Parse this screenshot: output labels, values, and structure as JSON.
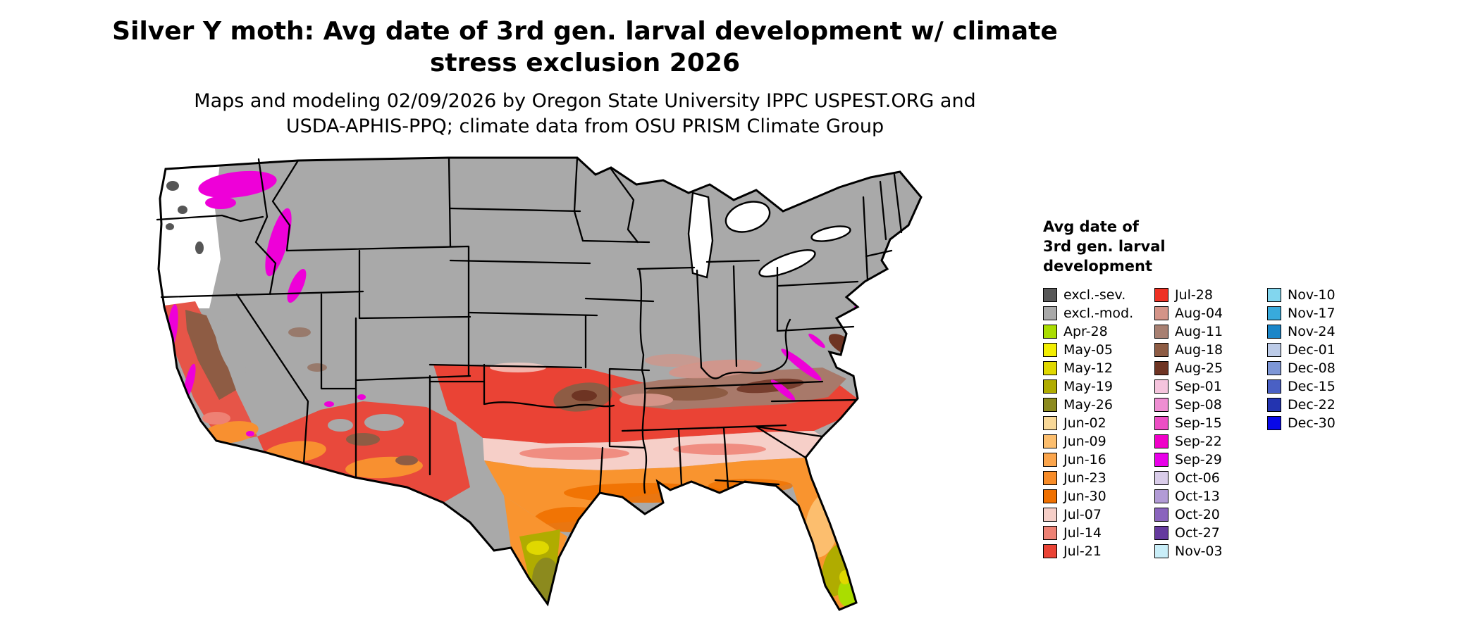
{
  "title": {
    "line1": "Silver Y moth: Avg date of 3rd gen. larval development w/ climate",
    "line2": "stress exclusion 2026"
  },
  "subtitle": {
    "line1": "Maps and modeling 02/09/2026 by Oregon State University IPPC USPEST.ORG and",
    "line2": "USDA-APHIS-PPQ; climate data from OSU PRISM Climate Group"
  },
  "legend": {
    "title_lines": [
      "Avg date of",
      "3rd gen. larval",
      "development"
    ],
    "columns": [
      {
        "items": [
          {
            "label": "excl.-sev.",
            "color": "#585858"
          },
          {
            "label": "excl.-mod.",
            "color": "#a9a9a9"
          },
          {
            "label": "Apr-28",
            "color": "#aadd00"
          },
          {
            "label": "May-05",
            "color": "#f2ee00"
          },
          {
            "label": "May-12",
            "color": "#e0d800"
          },
          {
            "label": "May-19",
            "color": "#b0ac00"
          },
          {
            "label": "May-26",
            "color": "#8c8a1e"
          },
          {
            "label": "Jun-02",
            "color": "#f8d898"
          },
          {
            "label": "Jun-09",
            "color": "#fcbe6e"
          },
          {
            "label": "Jun-16",
            "color": "#fba54c"
          },
          {
            "label": "Jun-23",
            "color": "#f88c28"
          },
          {
            "label": "Jun-30",
            "color": "#ef7000"
          },
          {
            "label": "Jul-07",
            "color": "#f6cfc8"
          },
          {
            "label": "Jul-14",
            "color": "#ee8174"
          },
          {
            "label": "Jul-21",
            "color": "#ea4335"
          }
        ]
      },
      {
        "items": [
          {
            "label": "Jul-28",
            "color": "#ee3124"
          },
          {
            "label": "Aug-04",
            "color": "#d49488"
          },
          {
            "label": "Aug-11",
            "color": "#a88072"
          },
          {
            "label": "Aug-18",
            "color": "#8e5c44"
          },
          {
            "label": "Aug-25",
            "color": "#6e3423"
          },
          {
            "label": "Sep-01",
            "color": "#f5c4dd"
          },
          {
            "label": "Sep-08",
            "color": "#ee8ed2"
          },
          {
            "label": "Sep-15",
            "color": "#ec4ec4"
          },
          {
            "label": "Sep-22",
            "color": "#f000c8"
          },
          {
            "label": "Sep-29",
            "color": "#e800e8"
          },
          {
            "label": "Oct-06",
            "color": "#d9cce9"
          },
          {
            "label": "Oct-13",
            "color": "#b29bd6"
          },
          {
            "label": "Oct-20",
            "color": "#8a64bd"
          },
          {
            "label": "Oct-27",
            "color": "#653a9e"
          },
          {
            "label": "Nov-03",
            "color": "#c9eef8"
          }
        ]
      },
      {
        "items": [
          {
            "label": "Nov-10",
            "color": "#82d6ee"
          },
          {
            "label": "Nov-17",
            "color": "#38aadc"
          },
          {
            "label": "Nov-24",
            "color": "#1b86c8"
          },
          {
            "label": "Dec-01",
            "color": "#bccbe8"
          },
          {
            "label": "Dec-08",
            "color": "#7d96d6"
          },
          {
            "label": "Dec-15",
            "color": "#4a60c4"
          },
          {
            "label": "Dec-22",
            "color": "#2334b0"
          },
          {
            "label": "Dec-30",
            "color": "#0808e8"
          }
        ]
      }
    ]
  }
}
